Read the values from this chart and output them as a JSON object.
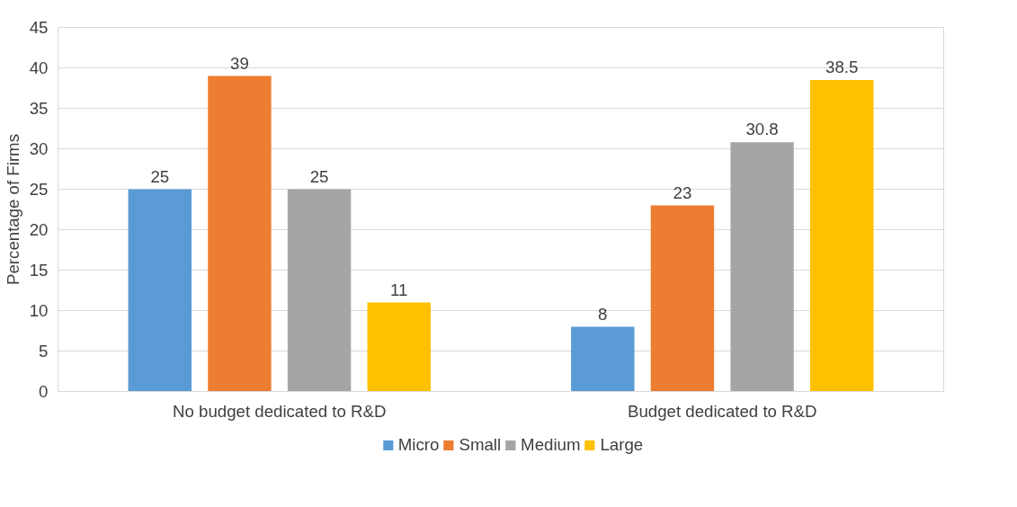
{
  "chart_data": {
    "type": "bar",
    "ylabel": "Percentage of Firms",
    "categories": [
      "No budget dedicated to R&D",
      "Budget dedicated to R&D"
    ],
    "series": [
      {
        "name": "Micro",
        "color": "#5b9bd5",
        "values": [
          25,
          8
        ]
      },
      {
        "name": "Small",
        "color": "#ed7d31",
        "values": [
          39,
          23
        ]
      },
      {
        "name": "Medium",
        "color": "#a5a5a5",
        "values": [
          25,
          30.8
        ]
      },
      {
        "name": "Large",
        "color": "#ffc000",
        "values": [
          11,
          38.5
        ]
      }
    ],
    "ylim": [
      0,
      45
    ],
    "yticks": [
      0,
      5,
      10,
      15,
      20,
      25,
      30,
      35,
      40,
      45
    ],
    "grid": "y",
    "legend": "bottom",
    "data_labels": true
  }
}
